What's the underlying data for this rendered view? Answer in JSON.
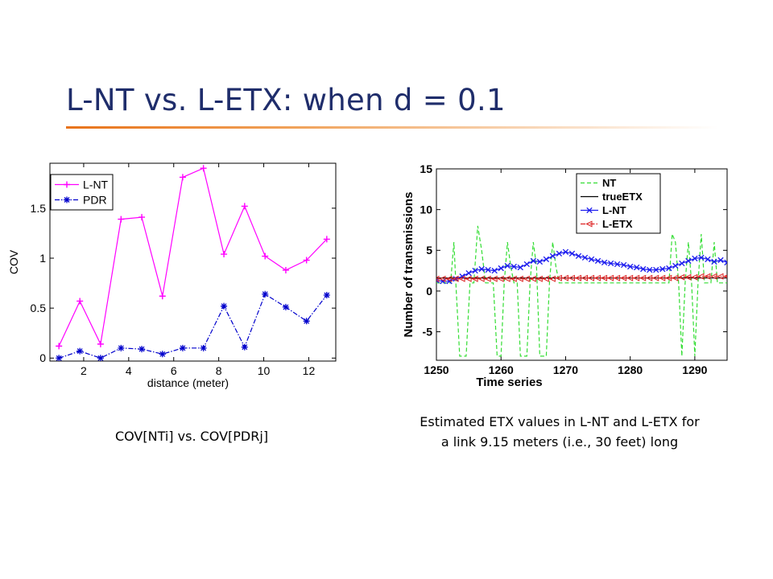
{
  "slide": {
    "title": "L-NT vs. L-ETX: when d = 0.1",
    "title_color": "#1f2d6b",
    "rule_color": "#e8731a"
  },
  "left_caption": "COV[NTi] vs. COV[PDRj]",
  "right_caption": {
    "line1": "Estimated ETX values in L-NT and L-ETX for",
    "line2": "a link 9.15 meters (i.e., 30 feet) long"
  },
  "chart_data": [
    {
      "type": "line",
      "xlabel": "distance (meter)",
      "ylabel": "COV",
      "xlim": [
        0.5,
        13.2
      ],
      "ylim": [
        -0.03,
        1.95
      ],
      "xticks": [
        2,
        4,
        6,
        8,
        10,
        12
      ],
      "yticks": [
        0,
        0.5,
        1,
        1.5
      ],
      "ytick_labels": [
        "0",
        "0.5",
        "1",
        "1.5"
      ],
      "legend_position": "top-left",
      "grid": false,
      "x": [
        0.9,
        1.83,
        2.75,
        3.66,
        4.58,
        5.5,
        6.4,
        7.32,
        8.23,
        9.15,
        10.06,
        10.98,
        11.9,
        12.8
      ],
      "series": [
        {
          "name": "L-NT",
          "color": "#ff00ff",
          "dash": "solid",
          "marker": "plus",
          "values": [
            0.12,
            0.57,
            0.14,
            1.39,
            1.41,
            0.62,
            1.81,
            1.9,
            1.04,
            1.52,
            1.02,
            0.88,
            0.98,
            1.19
          ]
        },
        {
          "name": "PDR",
          "color": "#0000cc",
          "dash": "dashdot",
          "marker": "star",
          "values": [
            0.0,
            0.07,
            0.0,
            0.1,
            0.09,
            0.04,
            0.1,
            0.1,
            0.52,
            0.11,
            0.64,
            0.51,
            0.37,
            0.63
          ]
        }
      ]
    },
    {
      "type": "line",
      "xlabel": "Time series",
      "ylabel": "Number of transmissions",
      "xlim": [
        1250,
        1295
      ],
      "ylim": [
        -8.5,
        15
      ],
      "xticks": [
        1250,
        1260,
        1270,
        1280,
        1290
      ],
      "yticks": [
        -5,
        0,
        5,
        10,
        15
      ],
      "legend_position": "top-right",
      "grid": false,
      "series": [
        {
          "name": "NT",
          "color": "#33dd33",
          "dash": "dashed",
          "marker": "none",
          "x": [
            1250,
            1251,
            1251.6,
            1252.2,
            1252.7,
            1253,
            1253.6,
            1254.2,
            1254.6,
            1255.2,
            1255.8,
            1256.4,
            1257,
            1257.6,
            1258.2,
            1258.8,
            1259.4,
            1260,
            1260.5,
            1261,
            1261.5,
            1262,
            1262.5,
            1263,
            1263.5,
            1264,
            1264.5,
            1265,
            1265.5,
            1266,
            1266.5,
            1267,
            1267.5,
            1268,
            1268.5,
            1269,
            1269.5,
            1270,
            1270.5,
            1271,
            1284,
            1284.5,
            1285,
            1285.5,
            1286,
            1286.5,
            1287,
            1287.5,
            1288,
            1288.5,
            1289,
            1289.5,
            1290,
            1290.5,
            1291,
            1291.5,
            1292,
            1292.5,
            1293,
            1293.5,
            1294,
            1295
          ],
          "y": [
            1,
            1,
            1,
            1,
            6,
            1,
            -8,
            -8,
            -8,
            1,
            1,
            8,
            5,
            1,
            1,
            1,
            -8,
            -8,
            1,
            6,
            3,
            1,
            1,
            -8,
            -8,
            -8,
            1,
            6,
            3,
            -8,
            -8,
            -8,
            1,
            6,
            3,
            1,
            1,
            1,
            1,
            1,
            1,
            1,
            1,
            1,
            1,
            7,
            6,
            1,
            -8,
            1,
            6,
            1,
            -8,
            1,
            7,
            1,
            1,
            1,
            6,
            1,
            1,
            1
          ]
        },
        {
          "name": "trueETX",
          "color": "#000000",
          "dash": "solid",
          "marker": "none",
          "x": [
            1250,
            1295
          ],
          "y": [
            1.6,
            1.6
          ]
        },
        {
          "name": "L-NT",
          "color": "#1a1aee",
          "dash": "solid",
          "marker": "x",
          "x": [
            1250,
            1251,
            1252,
            1253,
            1254,
            1255,
            1256,
            1257,
            1258,
            1259,
            1260,
            1261,
            1262,
            1263,
            1264,
            1265,
            1266,
            1267,
            1268,
            1269,
            1270,
            1271,
            1272,
            1273,
            1274,
            1275,
            1276,
            1277,
            1278,
            1279,
            1280,
            1281,
            1282,
            1283,
            1284,
            1285,
            1286,
            1287,
            1288,
            1289,
            1290,
            1291,
            1292,
            1293,
            1294,
            1295
          ],
          "y": [
            1.3,
            1.2,
            1.2,
            1.5,
            1.8,
            2.2,
            2.5,
            2.7,
            2.6,
            2.5,
            2.8,
            3.1,
            3.0,
            2.9,
            3.3,
            3.7,
            3.6,
            3.9,
            4.3,
            4.6,
            4.8,
            4.6,
            4.3,
            4.1,
            3.9,
            3.7,
            3.5,
            3.4,
            3.3,
            3.2,
            3.0,
            2.9,
            2.7,
            2.6,
            2.6,
            2.7,
            2.8,
            3.1,
            3.4,
            3.7,
            4.0,
            4.1,
            3.9,
            3.6,
            3.8,
            3.5
          ]
        },
        {
          "name": "L-ETX",
          "color": "#dd2222",
          "dash": "dashdot",
          "marker": "triangle-left",
          "x": [
            1250,
            1251,
            1252,
            1253,
            1254,
            1255,
            1256,
            1257,
            1258,
            1259,
            1260,
            1261,
            1262,
            1263,
            1264,
            1265,
            1266,
            1267,
            1268,
            1269,
            1270,
            1271,
            1272,
            1273,
            1274,
            1275,
            1276,
            1277,
            1278,
            1279,
            1280,
            1281,
            1282,
            1283,
            1284,
            1285,
            1286,
            1287,
            1288,
            1289,
            1290,
            1291,
            1292,
            1293,
            1294,
            1295
          ],
          "y": [
            1.5,
            1.5,
            1.5,
            1.5,
            1.5,
            1.5,
            1.5,
            1.5,
            1.5,
            1.5,
            1.5,
            1.5,
            1.5,
            1.5,
            1.5,
            1.5,
            1.5,
            1.5,
            1.5,
            1.6,
            1.6,
            1.6,
            1.6,
            1.6,
            1.6,
            1.6,
            1.6,
            1.6,
            1.6,
            1.6,
            1.6,
            1.6,
            1.6,
            1.6,
            1.6,
            1.6,
            1.6,
            1.6,
            1.7,
            1.7,
            1.7,
            1.8,
            1.8,
            1.8,
            1.8,
            1.8
          ]
        }
      ]
    }
  ]
}
